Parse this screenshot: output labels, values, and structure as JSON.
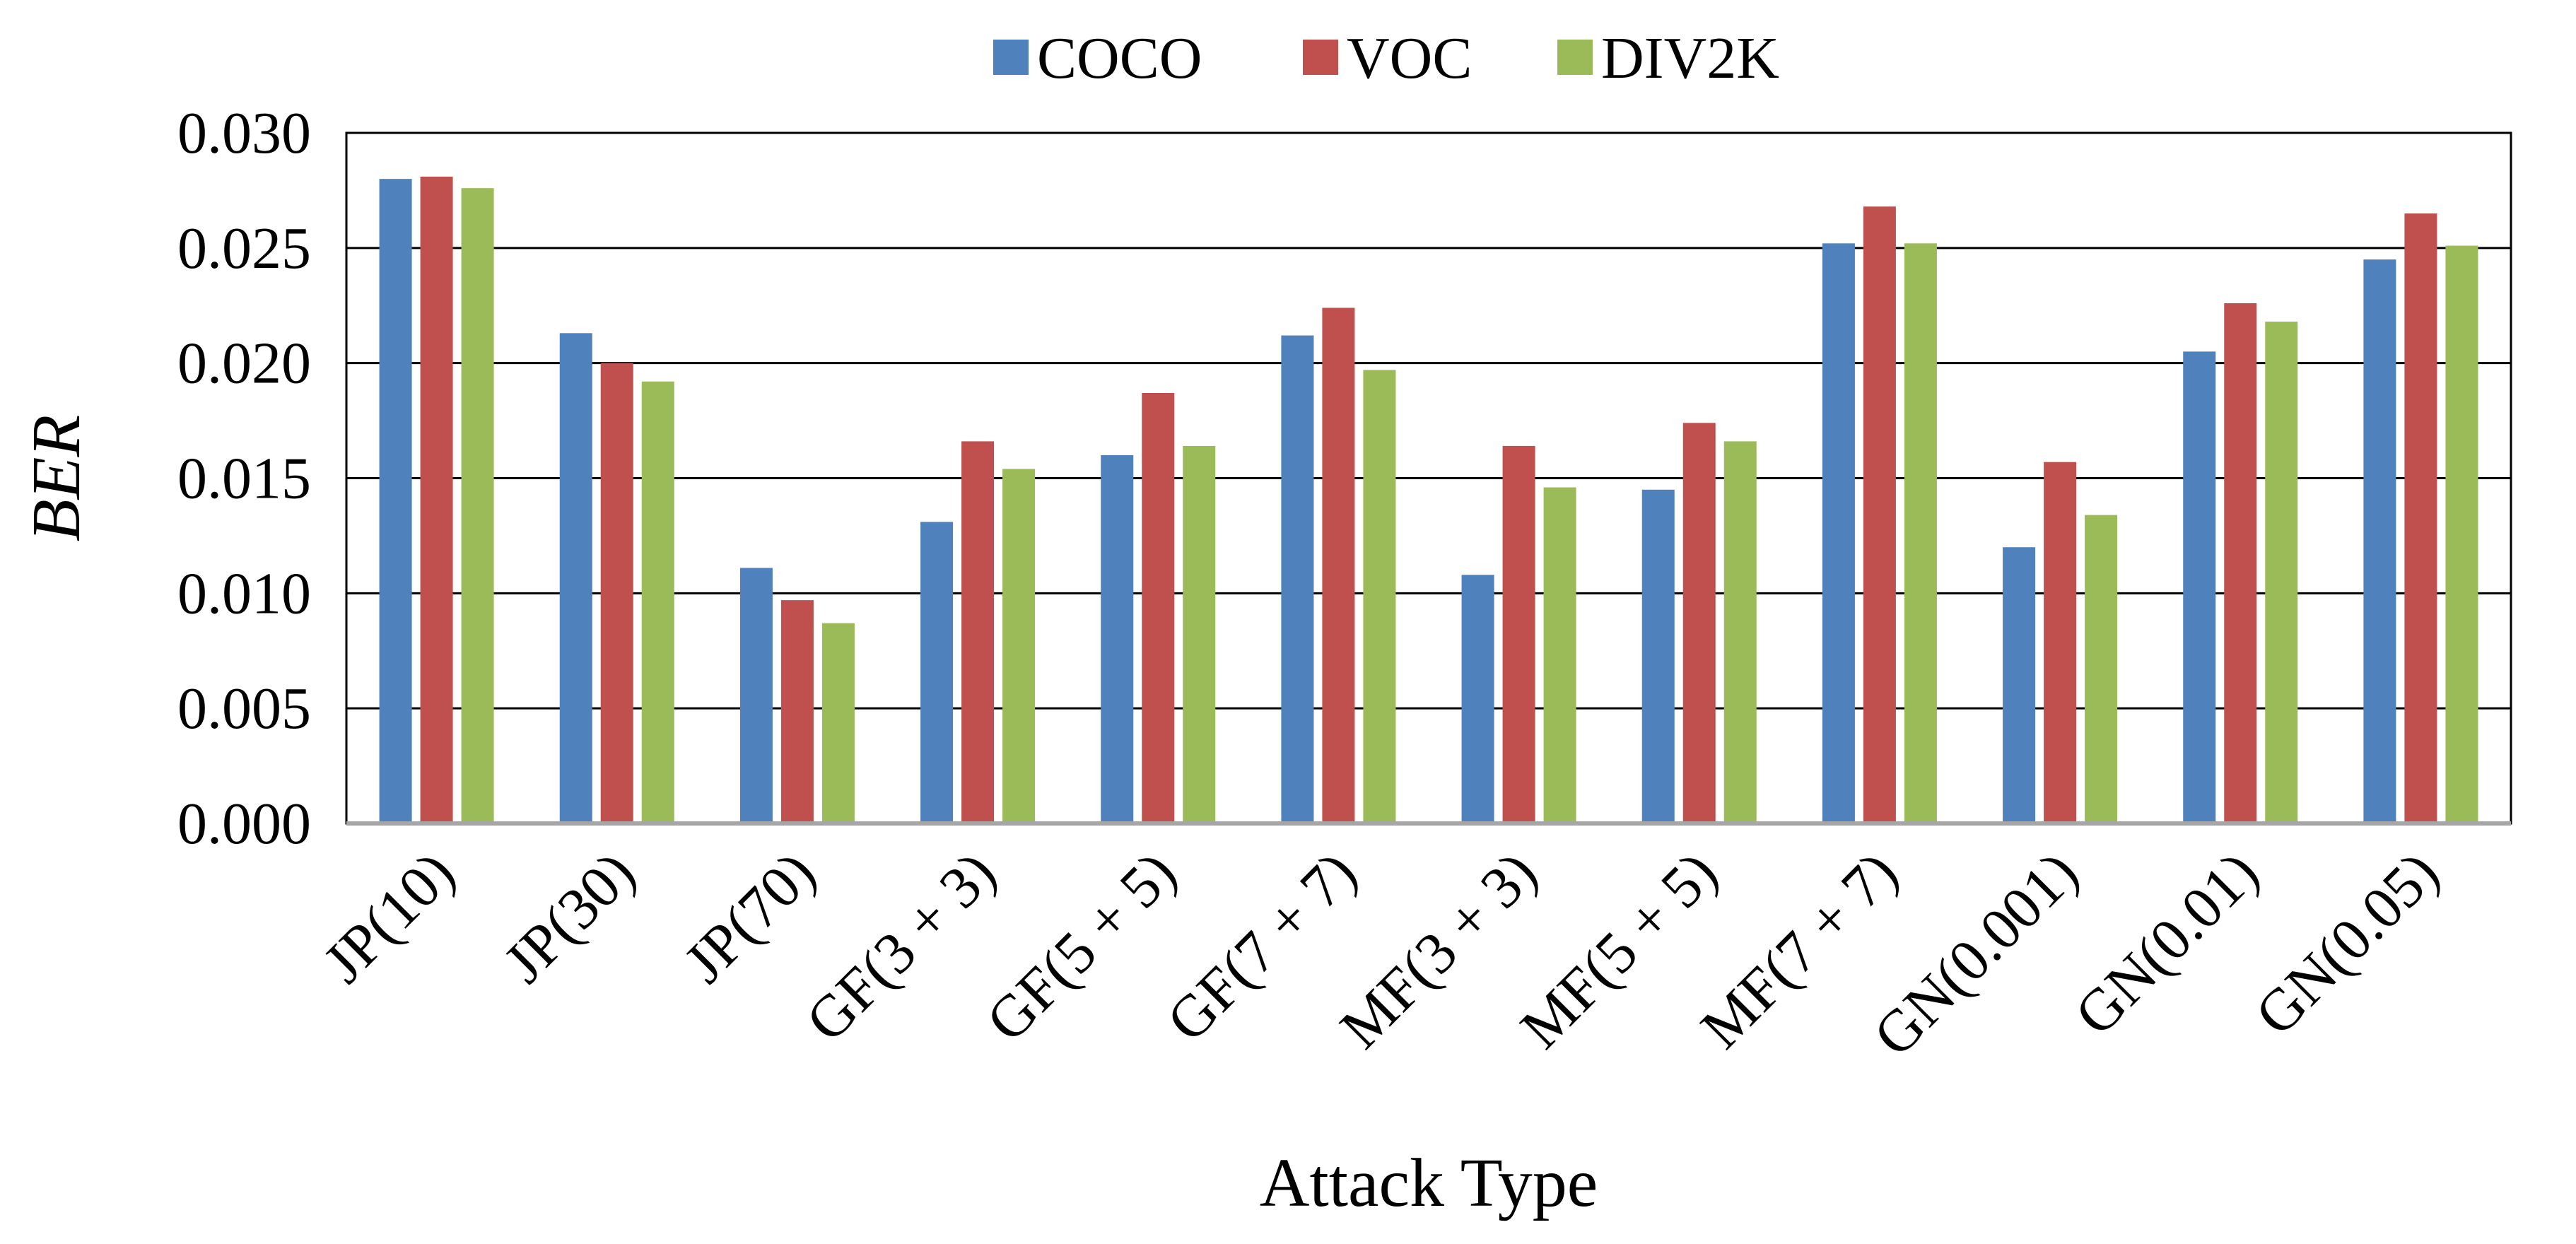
{
  "chart_data": {
    "type": "bar",
    "title": "",
    "xlabel": "Attack Type",
    "ylabel": "BER",
    "ylim": [
      0,
      0.03
    ],
    "yticks": [
      "0.000",
      "0.005",
      "0.010",
      "0.015",
      "0.020",
      "0.025",
      "0.030"
    ],
    "grid": true,
    "legend_position": "top-center",
    "categories": [
      "JP(10)",
      "JP(30)",
      "JP(70)",
      "GF(3 + 3)",
      "GF(5 + 5)",
      "GF(7 + 7)",
      "MF(3 + 3)",
      "MF(5 + 5)",
      "MF(7 + 7)",
      "GN(0.001)",
      "GN(0.01)",
      "GN(0.05)"
    ],
    "series": [
      {
        "name": "COCO",
        "color": "#4F81BD",
        "values": [
          0.028,
          0.0213,
          0.0111,
          0.0131,
          0.016,
          0.0212,
          0.0108,
          0.0145,
          0.0252,
          0.012,
          0.0205,
          0.0245
        ]
      },
      {
        "name": "VOC",
        "color": "#C0504D",
        "values": [
          0.0281,
          0.02,
          0.0097,
          0.0166,
          0.0187,
          0.0224,
          0.0164,
          0.0174,
          0.0268,
          0.0157,
          0.0226,
          0.0265
        ]
      },
      {
        "name": "DIV2K",
        "color": "#9BBB59",
        "values": [
          0.0276,
          0.0192,
          0.0087,
          0.0154,
          0.0164,
          0.0197,
          0.0146,
          0.0166,
          0.0252,
          0.0134,
          0.0218,
          0.0251
        ]
      }
    ]
  }
}
